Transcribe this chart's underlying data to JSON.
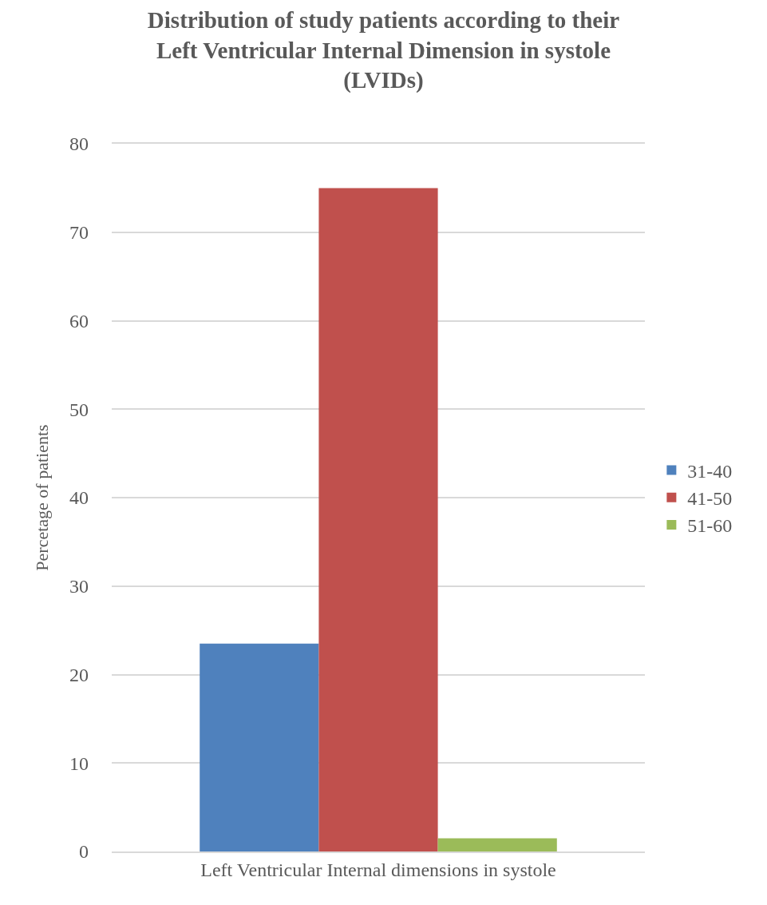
{
  "chart_data": {
    "type": "bar",
    "title": "Distribution of study patients according to their Left Ventricular Internal Dimension in systole (LVIDs)",
    "ylabel": "Percetage of patients",
    "categories": [
      "Left Ventricular Internal dimensions in systole"
    ],
    "series": [
      {
        "name": "31-40",
        "color": "#4f81bd",
        "values": [
          23.5
        ]
      },
      {
        "name": "41-50",
        "color": "#c0504d",
        "values": [
          75
        ]
      },
      {
        "name": "51-60",
        "color": "#9bbb59",
        "values": [
          1.5
        ]
      }
    ],
    "ylim": [
      0,
      80
    ],
    "yticks": [
      0,
      10,
      20,
      30,
      40,
      50,
      60,
      70,
      80
    ],
    "grid": "y",
    "legend": "right"
  }
}
